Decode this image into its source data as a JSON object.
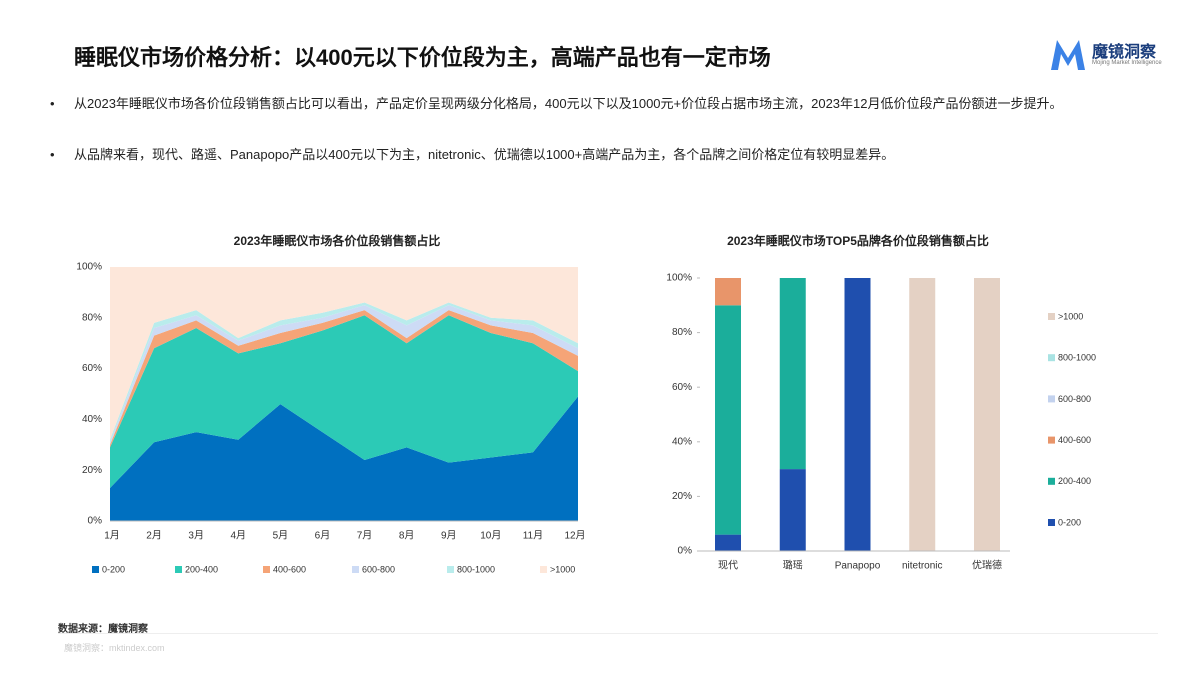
{
  "header": {
    "title": "睡眠仪市场价格分析：以400元以下价位段为主，高端产品也有一定市场",
    "logo": "魔镜洞察",
    "logo_tagline": "Mojing Market Intelligence"
  },
  "bullets": [
    "从2023年睡眠仪市场各价位段销售额占比可以看出，产品定价呈现两级分化格局，400元以下以及1000元+价位段占据市场主流，2023年12月低价位段产品份额进一步提升。",
    "从品牌来看，现代、路遥、Panapopo产品以400元以下为主，nitetronic、优瑞德以1000+高端产品为主，各个品牌之间价格定位有较明显差异。"
  ],
  "footer": {
    "source": "数据来源：魔镜洞察",
    "watermark": "魔镜洞察：mktindex.com"
  },
  "chart_data": [
    {
      "type": "area",
      "stacked": true,
      "title": "2023年睡眠仪市场各价位段销售额占比",
      "categories": [
        "1月",
        "2月",
        "3月",
        "4月",
        "5月",
        "6月",
        "7月",
        "8月",
        "9月",
        "10月",
        "11月",
        "12月"
      ],
      "ylim": [
        0,
        100
      ],
      "yticks": [
        {
          "value": 0,
          "label": "0%"
        },
        {
          "value": 20,
          "label": "20%"
        },
        {
          "value": 40,
          "label": "40%"
        },
        {
          "value": 60,
          "label": "60%"
        },
        {
          "value": 80,
          "label": "80%"
        },
        {
          "value": 100,
          "label": "100%"
        }
      ],
      "series": [
        {
          "name": "0-200",
          "color": "#0070c0",
          "values": [
            13,
            31,
            35,
            32,
            46,
            35,
            24,
            29,
            23,
            25,
            27,
            49
          ]
        },
        {
          "name": "200-400",
          "color": "#2ccab6",
          "values": [
            16,
            37,
            41,
            34,
            24,
            40,
            57,
            41,
            58,
            49,
            43,
            10
          ]
        },
        {
          "name": "400-600",
          "color": "#f5a477",
          "values": [
            1,
            5,
            3,
            3,
            4,
            3,
            2,
            2,
            2,
            3,
            4,
            6
          ]
        },
        {
          "name": "600-800",
          "color": "#cddbf5",
          "values": [
            1,
            3,
            2,
            2,
            3,
            2,
            2,
            5,
            2,
            2,
            3,
            3
          ]
        },
        {
          "name": "800-1000",
          "color": "#b9ecec",
          "values": [
            1,
            2,
            2,
            1,
            2,
            2,
            1,
            2,
            1,
            1,
            2,
            2
          ]
        },
        {
          "name": ">1000",
          "color": "#fde7da",
          "values": [
            68,
            22,
            17,
            28,
            21,
            18,
            14,
            21,
            14,
            20,
            21,
            30
          ]
        }
      ]
    },
    {
      "type": "bar",
      "stacked": true,
      "title": "2023年睡眠仪市场TOP5品牌各价位段销售额占比",
      "categories": [
        "现代",
        "璐瑶",
        "Panapopo",
        "nitetronic",
        "优瑞德"
      ],
      "ylim": [
        0,
        100
      ],
      "yticks": [
        {
          "value": 0,
          "label": "0%"
        },
        {
          "value": 20,
          "label": "20%"
        },
        {
          "value": 40,
          "label": "40%"
        },
        {
          "value": 60,
          "label": "60%"
        },
        {
          "value": 80,
          "label": "80%"
        },
        {
          "value": 100,
          "label": "100%"
        }
      ],
      "series": [
        {
          "name": "0-200",
          "color": "#1f4fae",
          "values": [
            6,
            30,
            100,
            0,
            0
          ]
        },
        {
          "name": "200-400",
          "color": "#1bae9b",
          "values": [
            84,
            70,
            0,
            0,
            0
          ]
        },
        {
          "name": "400-600",
          "color": "#e8956a",
          "values": [
            10,
            0,
            0,
            0,
            0
          ]
        },
        {
          "name": "600-800",
          "color": "#c3d2ee",
          "values": [
            0,
            0,
            0,
            0,
            0
          ]
        },
        {
          "name": "800-1000",
          "color": "#a9e3e3",
          "values": [
            0,
            0,
            0,
            0,
            0
          ]
        },
        {
          "name": ">1000",
          "color": "#e4d1c4",
          "values": [
            0,
            0,
            0,
            100,
            100
          ]
        }
      ]
    }
  ]
}
